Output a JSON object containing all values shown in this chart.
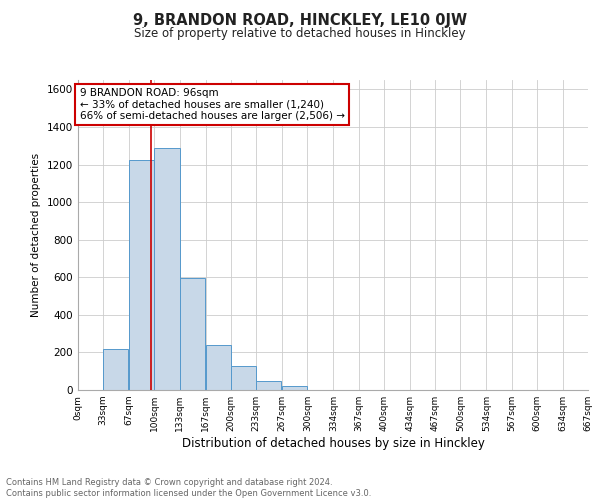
{
  "title": "9, BRANDON ROAD, HINCKLEY, LE10 0JW",
  "subtitle": "Size of property relative to detached houses in Hinckley",
  "xlabel": "Distribution of detached houses by size in Hinckley",
  "ylabel": "Number of detached properties",
  "bin_edges": [
    0,
    33,
    67,
    100,
    133,
    167,
    200,
    233,
    267,
    300,
    334,
    367,
    400,
    434,
    467,
    500,
    534,
    567,
    600,
    634,
    667
  ],
  "bin_labels": [
    "0sqm",
    "33sqm",
    "67sqm",
    "100sqm",
    "133sqm",
    "167sqm",
    "200sqm",
    "233sqm",
    "267sqm",
    "300sqm",
    "334sqm",
    "367sqm",
    "400sqm",
    "434sqm",
    "467sqm",
    "500sqm",
    "534sqm",
    "567sqm",
    "600sqm",
    "634sqm",
    "667sqm"
  ],
  "bar_heights": [
    0,
    220,
    1225,
    1290,
    595,
    240,
    130,
    50,
    20,
    0,
    0,
    0,
    0,
    0,
    0,
    0,
    0,
    0,
    0,
    0
  ],
  "bar_color": "#c8d8e8",
  "bar_edge_color": "#5599cc",
  "property_line_x": 96,
  "property_line_color": "#cc0000",
  "annotation_title": "9 BRANDON ROAD: 96sqm",
  "annotation_line1": "← 33% of detached houses are smaller (1,240)",
  "annotation_line2": "66% of semi-detached houses are larger (2,506) →",
  "annotation_box_color": "#ffffff",
  "annotation_box_edge": "#cc0000",
  "ylim": [
    0,
    1650
  ],
  "yticks": [
    0,
    200,
    400,
    600,
    800,
    1000,
    1200,
    1400,
    1600
  ],
  "footer_line1": "Contains HM Land Registry data © Crown copyright and database right 2024.",
  "footer_line2": "Contains public sector information licensed under the Open Government Licence v3.0.",
  "background_color": "#ffffff",
  "grid_color": "#cccccc"
}
